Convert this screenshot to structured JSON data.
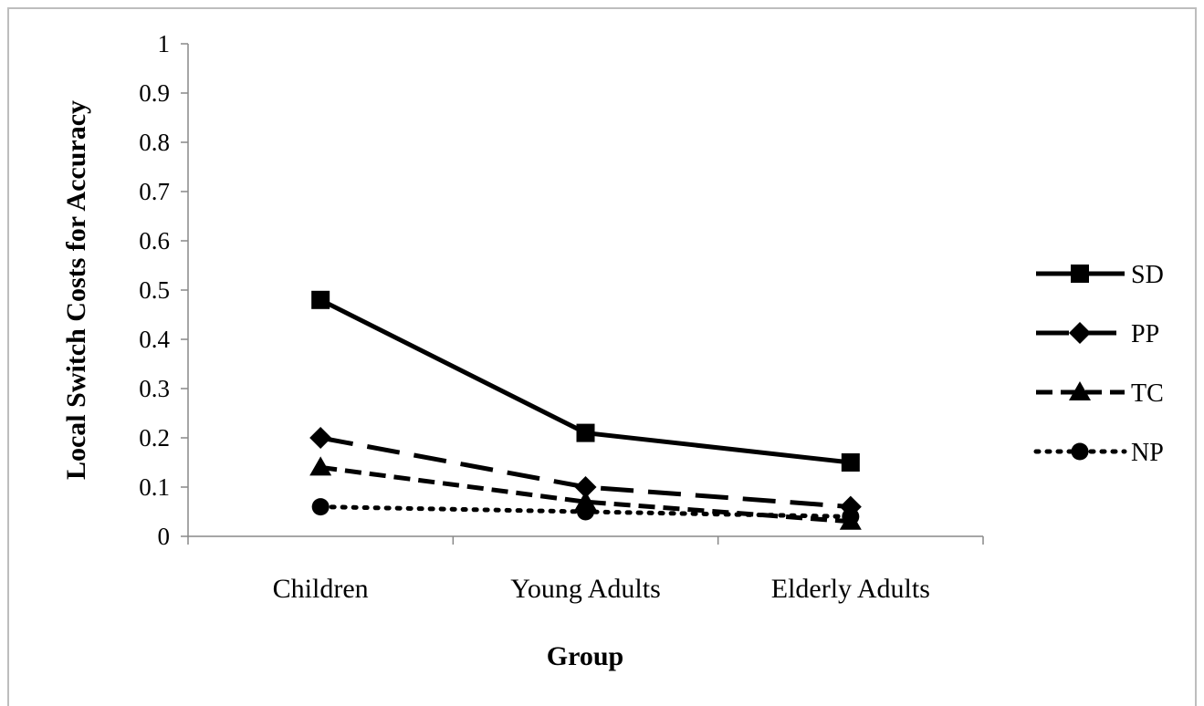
{
  "chart_data": {
    "type": "line",
    "title": "",
    "xlabel": "Group",
    "ylabel": "Local Switch Costs for Accuracy",
    "categories": [
      "Children",
      "Young Adults",
      "Elderly Adults"
    ],
    "ylim": [
      0,
      1
    ],
    "yticks": [
      "0",
      "0.1",
      "0.2",
      "0.3",
      "0.4",
      "0.5",
      "0.6",
      "0.7",
      "0.8",
      "0.9",
      "1"
    ],
    "grid": false,
    "legend_position": "right",
    "series": [
      {
        "name": "SD",
        "values": [
          0.48,
          0.21,
          0.15
        ],
        "marker": "square",
        "dash": "solid",
        "color": "#000000"
      },
      {
        "name": "PP",
        "values": [
          0.2,
          0.1,
          0.06
        ],
        "marker": "diamond",
        "dash": "long-dash",
        "color": "#000000"
      },
      {
        "name": "TC",
        "values": [
          0.14,
          0.07,
          0.03
        ],
        "marker": "triangle",
        "dash": "dash",
        "color": "#000000"
      },
      {
        "name": "NP",
        "values": [
          0.06,
          0.05,
          0.04
        ],
        "marker": "circle",
        "dash": "dot",
        "color": "#000000"
      }
    ]
  }
}
